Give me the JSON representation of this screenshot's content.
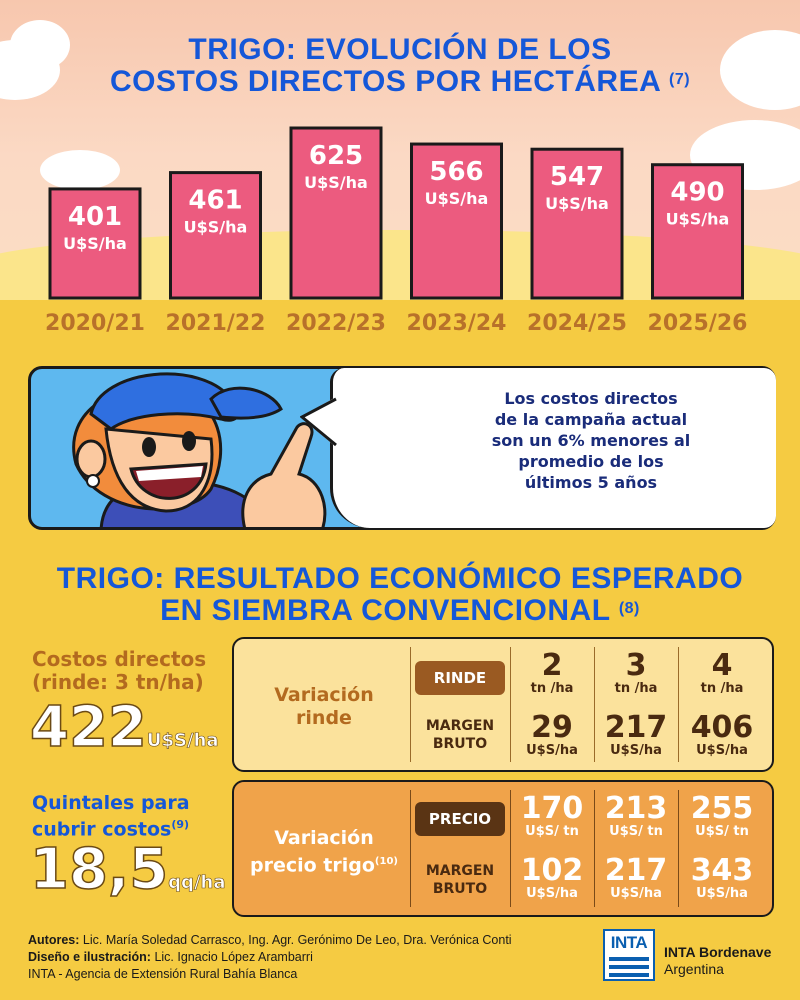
{
  "header": {
    "title_line1": "TRIGO: EVOLUCIÓN DE LOS",
    "title_line2": "COSTOS DIRECTOS POR HECTÁREA",
    "title_note": "(7)"
  },
  "chart_data": {
    "type": "bar",
    "title": "TRIGO: EVOLUCIÓN DE LOS COSTOS DIRECTOS POR HECTÁREA (7)",
    "categories": [
      "2020/21",
      "2021/22",
      "2022/23",
      "2023/24",
      "2024/25",
      "2025/26"
    ],
    "values": [
      401,
      461,
      625,
      566,
      547,
      490
    ],
    "unit": "U$S/ha",
    "xlabel": "",
    "ylabel": "",
    "ylim": [
      0,
      700
    ],
    "colors": {
      "bar": "#ec5b7f",
      "label": "#b8712a"
    }
  },
  "banner": {
    "bubble_lines": [
      "Los costos directos",
      "de la campaña actual",
      "son un 6% menores al",
      "promedio de los",
      "últimos 5 años"
    ]
  },
  "section2": {
    "title_line1": "TRIGO: RESULTADO ECONÓMICO ESPERADO",
    "title_line2": "EN SIEMBRA CONVENCIONAL",
    "title_note": "(8)"
  },
  "costs": {
    "label_line1": "Costos directos",
    "label_line2": "(rinde: 3 tn/ha)",
    "value": "422",
    "unit": "U$S/ha"
  },
  "quintales": {
    "label_line1": "Quintales para",
    "label_line2": "cubrir costos",
    "label_note": "(9)",
    "value": "18,5",
    "unit": "qq/ha"
  },
  "table_rinde": {
    "row_label_line1": "Variación",
    "row_label_line2": "rinde",
    "pill": "RINDE",
    "margin_line1": "MARGEN",
    "margin_line2": "BRUTO",
    "columns": [
      {
        "top": "2",
        "top_unit": "tn /ha",
        "bottom": "29",
        "bottom_unit": "U$S/ha"
      },
      {
        "top": "3",
        "top_unit": "tn /ha",
        "bottom": "217",
        "bottom_unit": "U$S/ha"
      },
      {
        "top": "4",
        "top_unit": "tn /ha",
        "bottom": "406",
        "bottom_unit": "U$S/ha"
      }
    ]
  },
  "table_precio": {
    "row_label_line1": "Variación",
    "row_label_line2": "precio trigo",
    "row_label_note": "(10)",
    "pill": "PRECIO",
    "margin_line1": "MARGEN",
    "margin_line2": "BRUTO",
    "columns": [
      {
        "top": "170",
        "top_unit": "U$S/ tn",
        "bottom": "102",
        "bottom_unit": "U$S/ha"
      },
      {
        "top": "213",
        "top_unit": "U$S/ tn",
        "bottom": "217",
        "bottom_unit": "U$S/ha"
      },
      {
        "top": "255",
        "top_unit": "U$S/ tn",
        "bottom": "343",
        "bottom_unit": "U$S/ha"
      }
    ]
  },
  "footer": {
    "authors_label": "Autores:",
    "authors": "Lic. María Soledad Carrasco, Ing. Agr. Gerónimo De Leo, Dra. Verónica Conti",
    "design_label": "Diseño e ilustración:",
    "design": "Lic. Ignacio López Arambarri",
    "agency": "INTA - Agencia de Extensión Rural Bahía Blanca",
    "logo_text": "INTA",
    "org_line1": "INTA Bordenave",
    "org_line2": "Argentina"
  }
}
